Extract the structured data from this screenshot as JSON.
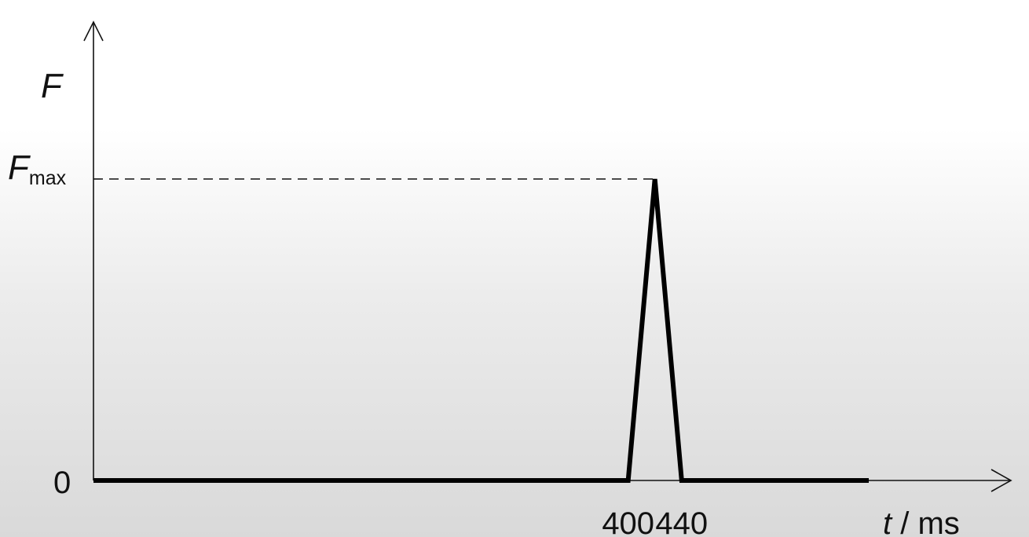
{
  "chart_data": {
    "type": "line",
    "xlabel_var": "t",
    "xlabel_unit": " / ms",
    "ylabel": "F",
    "y_reference_label": {
      "base": "F",
      "sub": "max"
    },
    "x_ticks": [
      "400",
      "440"
    ],
    "y_ticks": [
      "0"
    ],
    "x": [
      0,
      400,
      420,
      440,
      580
    ],
    "y": [
      0,
      0,
      1,
      0,
      0
    ],
    "xlim": [
      0,
      580
    ],
    "ylim": [
      0,
      1.7
    ],
    "grid": false,
    "reference_line": {
      "y": 1,
      "style": "dashed"
    }
  }
}
